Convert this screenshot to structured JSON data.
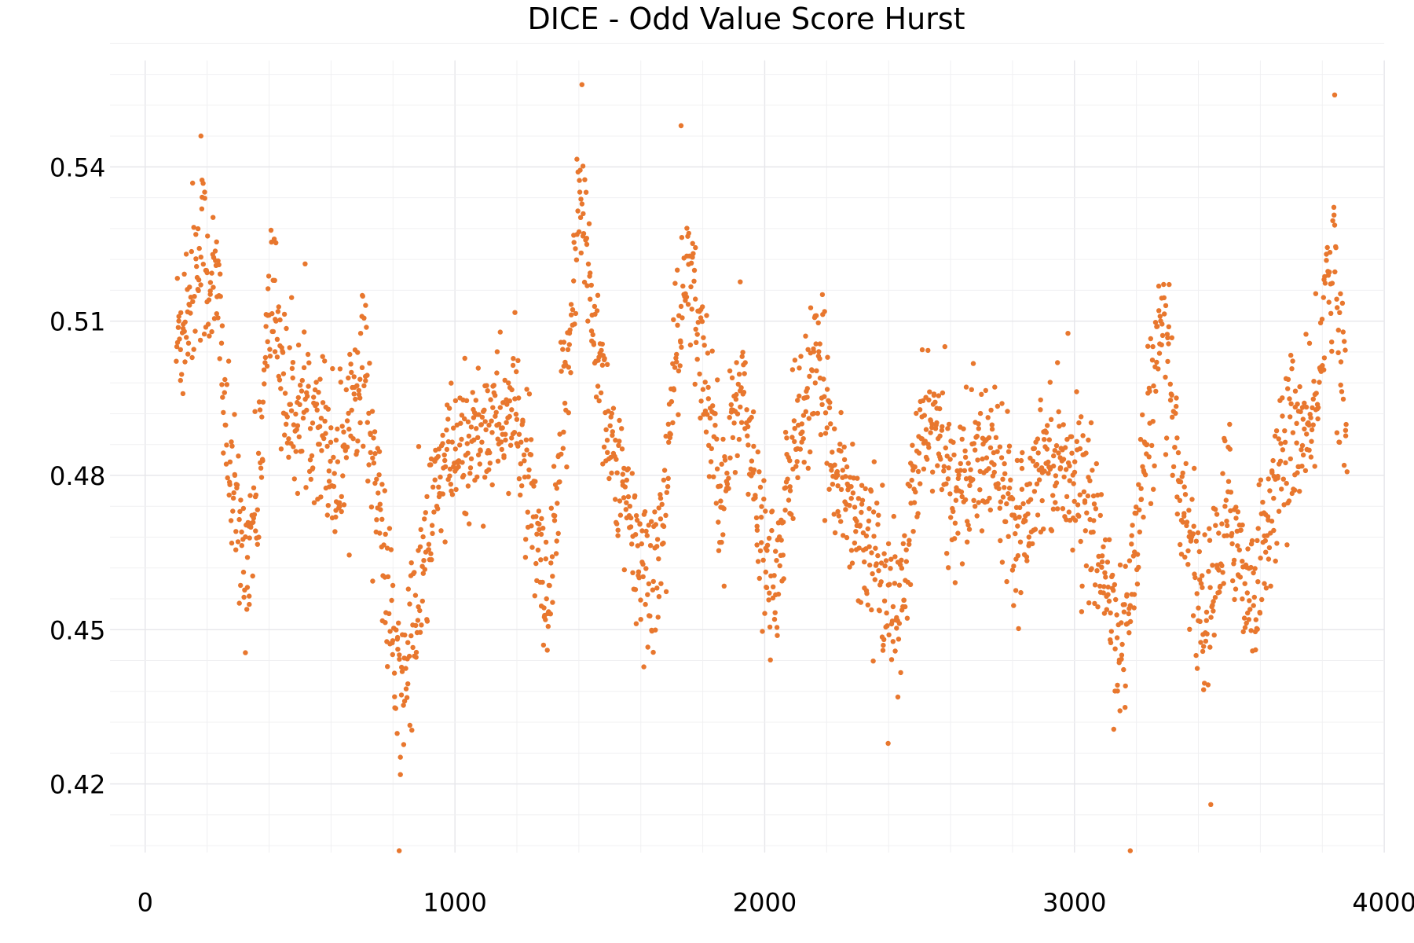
{
  "chart_data": {
    "type": "scatter",
    "title": "DICE - Odd Value Score Hurst",
    "xlabel": "",
    "ylabel": "",
    "xlim": [
      0,
      4000
    ],
    "ylim": [
      0.405,
      0.56
    ],
    "x_ticks": [
      0,
      1000,
      2000,
      3000,
      4000
    ],
    "x_tick_labels": [
      "0",
      "1000",
      "2000",
      "3000",
      "4000"
    ],
    "y_ticks": [
      0.42,
      0.45,
      0.48,
      0.51,
      0.54
    ],
    "y_tick_labels": [
      "0.42",
      "0.45",
      "0.48",
      "0.51",
      "0.54"
    ],
    "grid": true,
    "legend": null,
    "series": [
      {
        "name": "Odd Value Score Hurst",
        "color": "#E8772E",
        "x_start": 100,
        "x_end": 3880,
        "envelope": [
          {
            "x": 100,
            "center": 0.505,
            "spread": 0.012
          },
          {
            "x": 180,
            "center": 0.525,
            "spread": 0.012
          },
          {
            "x": 240,
            "center": 0.512,
            "spread": 0.012
          },
          {
            "x": 270,
            "center": 0.48,
            "spread": 0.01
          },
          {
            "x": 320,
            "center": 0.463,
            "spread": 0.01
          },
          {
            "x": 360,
            "center": 0.475,
            "spread": 0.01
          },
          {
            "x": 410,
            "center": 0.518,
            "spread": 0.012
          },
          {
            "x": 460,
            "center": 0.492,
            "spread": 0.01
          },
          {
            "x": 560,
            "center": 0.493,
            "spread": 0.01
          },
          {
            "x": 620,
            "center": 0.48,
            "spread": 0.012
          },
          {
            "x": 700,
            "center": 0.505,
            "spread": 0.01
          },
          {
            "x": 760,
            "center": 0.47,
            "spread": 0.01
          },
          {
            "x": 820,
            "center": 0.435,
            "spread": 0.012
          },
          {
            "x": 880,
            "center": 0.455,
            "spread": 0.012
          },
          {
            "x": 950,
            "center": 0.48,
            "spread": 0.01
          },
          {
            "x": 1100,
            "center": 0.49,
            "spread": 0.009
          },
          {
            "x": 1200,
            "center": 0.492,
            "spread": 0.01
          },
          {
            "x": 1260,
            "center": 0.468,
            "spread": 0.01
          },
          {
            "x": 1300,
            "center": 0.45,
            "spread": 0.01
          },
          {
            "x": 1350,
            "center": 0.49,
            "spread": 0.012
          },
          {
            "x": 1400,
            "center": 0.535,
            "spread": 0.01
          },
          {
            "x": 1450,
            "center": 0.51,
            "spread": 0.01
          },
          {
            "x": 1520,
            "center": 0.48,
            "spread": 0.01
          },
          {
            "x": 1600,
            "center": 0.462,
            "spread": 0.01
          },
          {
            "x": 1660,
            "center": 0.462,
            "spread": 0.012
          },
          {
            "x": 1700,
            "center": 0.495,
            "spread": 0.01
          },
          {
            "x": 1750,
            "center": 0.52,
            "spread": 0.01
          },
          {
            "x": 1820,
            "center": 0.495,
            "spread": 0.01
          },
          {
            "x": 1870,
            "center": 0.475,
            "spread": 0.01
          },
          {
            "x": 1920,
            "center": 0.502,
            "spread": 0.01
          },
          {
            "x": 1980,
            "center": 0.47,
            "spread": 0.01
          },
          {
            "x": 2040,
            "center": 0.458,
            "spread": 0.01
          },
          {
            "x": 2100,
            "center": 0.49,
            "spread": 0.01
          },
          {
            "x": 2170,
            "center": 0.5,
            "spread": 0.01
          },
          {
            "x": 2250,
            "center": 0.478,
            "spread": 0.01
          },
          {
            "x": 2350,
            "center": 0.465,
            "spread": 0.01
          },
          {
            "x": 2430,
            "center": 0.45,
            "spread": 0.01
          },
          {
            "x": 2500,
            "center": 0.485,
            "spread": 0.01
          },
          {
            "x": 2530,
            "center": 0.493,
            "spread": 0.008
          },
          {
            "x": 2600,
            "center": 0.478,
            "spread": 0.01
          },
          {
            "x": 2750,
            "center": 0.485,
            "spread": 0.01
          },
          {
            "x": 2820,
            "center": 0.47,
            "spread": 0.01
          },
          {
            "x": 2900,
            "center": 0.485,
            "spread": 0.009
          },
          {
            "x": 3000,
            "center": 0.482,
            "spread": 0.01
          },
          {
            "x": 3080,
            "center": 0.465,
            "spread": 0.01
          },
          {
            "x": 3160,
            "center": 0.445,
            "spread": 0.01
          },
          {
            "x": 3220,
            "center": 0.48,
            "spread": 0.01
          },
          {
            "x": 3280,
            "center": 0.508,
            "spread": 0.01
          },
          {
            "x": 3340,
            "center": 0.48,
            "spread": 0.01
          },
          {
            "x": 3420,
            "center": 0.45,
            "spread": 0.012
          },
          {
            "x": 3500,
            "center": 0.475,
            "spread": 0.01
          },
          {
            "x": 3570,
            "center": 0.455,
            "spread": 0.01
          },
          {
            "x": 3620,
            "center": 0.47,
            "spread": 0.01
          },
          {
            "x": 3700,
            "center": 0.49,
            "spread": 0.01
          },
          {
            "x": 3760,
            "center": 0.485,
            "spread": 0.01
          },
          {
            "x": 3830,
            "center": 0.525,
            "spread": 0.012
          },
          {
            "x": 3880,
            "center": 0.485,
            "spread": 0.012
          }
        ],
        "extremes": [
          {
            "x": 180,
            "y": 0.546
          },
          {
            "x": 820,
            "y": 0.407
          },
          {
            "x": 1410,
            "y": 0.556
          },
          {
            "x": 1730,
            "y": 0.548
          },
          {
            "x": 3180,
            "y": 0.407
          },
          {
            "x": 3440,
            "y": 0.416
          },
          {
            "x": 3840,
            "y": 0.554
          }
        ]
      }
    ]
  }
}
